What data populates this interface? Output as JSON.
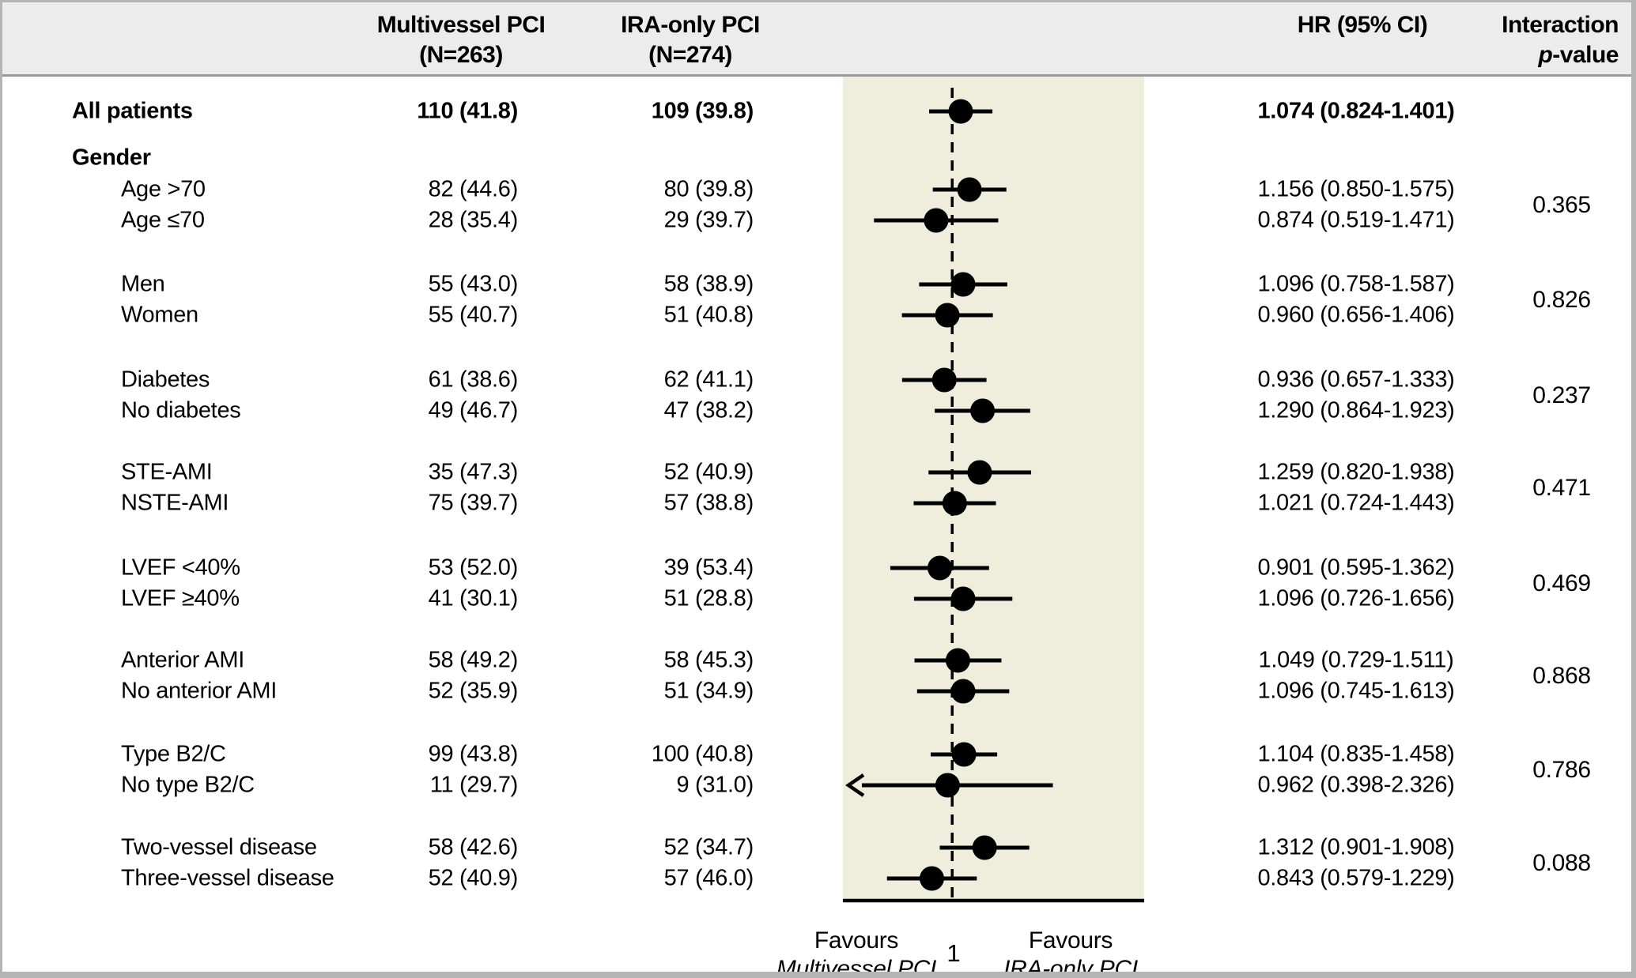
{
  "header": {
    "mv_line1": "Multivessel PCI",
    "mv_line2": "(N=263)",
    "ira_line1": "IRA-only PCI",
    "ira_line2": "(N=274)",
    "hr": "HR (95% CI)",
    "int_line1": "Interaction",
    "int_p": "p",
    "int_rest": "-value"
  },
  "chart_data": {
    "type": "forest",
    "columns": [
      "Multivessel PCI (N=263)",
      "IRA-only PCI (N=274)",
      "HR (95% CI)",
      "Interaction p-value"
    ],
    "axis": {
      "scale": "log",
      "xmin": 0.4,
      "xmax": 5.0,
      "reference_line": 1,
      "tick_label": "1",
      "left_caption_line1": "Favours",
      "left_caption_line2": "Multivessel PCI",
      "right_caption_line1": "Favours",
      "right_caption_line2": "IRA-only PCI"
    },
    "colors": {
      "band_background": "#efeddb",
      "header_background": "#ececec",
      "marker": "#000000",
      "frame": "#b4b4b4"
    },
    "blocks": [
      {
        "rows": [
          {
            "label": "All patients",
            "bold": true,
            "indent": false,
            "mv": "110 (41.8)",
            "ira": "109 (39.8)",
            "hr": 1.074,
            "lo": 0.824,
            "hi": 1.401,
            "hr_text": "1.074 (0.824-1.401)"
          }
        ]
      },
      {
        "group": "Gender",
        "p_value": "0.365",
        "rows": [
          {
            "label": "Age >70",
            "mv": "82 (44.6)",
            "ira": "80 (39.8)",
            "hr": 1.156,
            "lo": 0.85,
            "hi": 1.575,
            "hr_text": "1.156 (0.850-1.575)"
          },
          {
            "label": "Age ≤70",
            "mv": "28 (35.4)",
            "ira": "29 (39.7)",
            "hr": 0.874,
            "lo": 0.519,
            "hi": 1.471,
            "hr_text": "0.874 (0.519-1.471)"
          }
        ]
      },
      {
        "p_value": "0.826",
        "rows": [
          {
            "label": "Men",
            "mv": "55 (43.0)",
            "ira": "58 (38.9)",
            "hr": 1.096,
            "lo": 0.758,
            "hi": 1.587,
            "hr_text": "1.096 (0.758-1.587)"
          },
          {
            "label": "Women",
            "mv": "55 (40.7)",
            "ira": "51 (40.8)",
            "hr": 0.96,
            "lo": 0.656,
            "hi": 1.406,
            "hr_text": "0.960 (0.656-1.406)"
          }
        ]
      },
      {
        "p_value": "0.237",
        "rows": [
          {
            "label": "Diabetes",
            "mv": "61 (38.6)",
            "ira": "62 (41.1)",
            "hr": 0.936,
            "lo": 0.657,
            "hi": 1.333,
            "hr_text": "0.936 (0.657-1.333)"
          },
          {
            "label": "No diabetes",
            "mv": "49 (46.7)",
            "ira": "47 (38.2)",
            "hr": 1.29,
            "lo": 0.864,
            "hi": 1.923,
            "hr_text": "1.290 (0.864-1.923)"
          }
        ]
      },
      {
        "p_value": "0.471",
        "rows": [
          {
            "label": "STE-AMI",
            "mv": "35 (47.3)",
            "ira": "52 (40.9)",
            "hr": 1.259,
            "lo": 0.82,
            "hi": 1.938,
            "hr_text": "1.259 (0.820-1.938)"
          },
          {
            "label": "NSTE-AMI",
            "mv": "75 (39.7)",
            "ira": "57 (38.8)",
            "hr": 1.021,
            "lo": 0.724,
            "hi": 1.443,
            "hr_text": "1.021 (0.724-1.443)"
          }
        ]
      },
      {
        "p_value": "0.469",
        "rows": [
          {
            "label": "LVEF <40%",
            "mv": "53 (52.0)",
            "ira": "39 (53.4)",
            "hr": 0.901,
            "lo": 0.595,
            "hi": 1.362,
            "hr_text": "0.901 (0.595-1.362)"
          },
          {
            "label": "LVEF ≥40%",
            "mv": "41 (30.1)",
            "ira": "51 (28.8)",
            "hr": 1.096,
            "lo": 0.726,
            "hi": 1.656,
            "hr_text": "1.096 (0.726-1.656)"
          }
        ]
      },
      {
        "p_value": "0.868",
        "rows": [
          {
            "label": "Anterior AMI",
            "mv": "58 (49.2)",
            "ira": "58 (45.3)",
            "hr": 1.049,
            "lo": 0.729,
            "hi": 1.511,
            "hr_text": "1.049 (0.729-1.511)"
          },
          {
            "label": "No anterior AMI",
            "mv": "52 (35.9)",
            "ira": "51 (34.9)",
            "hr": 1.096,
            "lo": 0.745,
            "hi": 1.613,
            "hr_text": "1.096 (0.745-1.613)"
          }
        ]
      },
      {
        "p_value": "0.786",
        "rows": [
          {
            "label": "Type B2/C",
            "mv": "99 (43.8)",
            "ira": "100 (40.8)",
            "hr": 1.104,
            "lo": 0.835,
            "hi": 1.458,
            "hr_text": "1.104 (0.835-1.458)"
          },
          {
            "label": "No type B2/C",
            "mv": "11 (29.7)",
            "ira": "9 (31.0)",
            "hr": 0.962,
            "lo": 0.398,
            "hi": 2.326,
            "hr_text": "0.962 (0.398-2.326)"
          }
        ]
      },
      {
        "p_value": "0.088",
        "rows": [
          {
            "label": "Two-vessel disease",
            "mv": "58 (42.6)",
            "ira": "52 (34.7)",
            "hr": 1.312,
            "lo": 0.901,
            "hi": 1.908,
            "hr_text": "1.312 (0.901-1.908)"
          },
          {
            "label": "Three-vessel disease",
            "mv": "52 (40.9)",
            "ira": "57 (46.0)",
            "hr": 0.843,
            "lo": 0.579,
            "hi": 1.229,
            "hr_text": "0.843 (0.579-1.229)"
          }
        ]
      }
    ]
  }
}
